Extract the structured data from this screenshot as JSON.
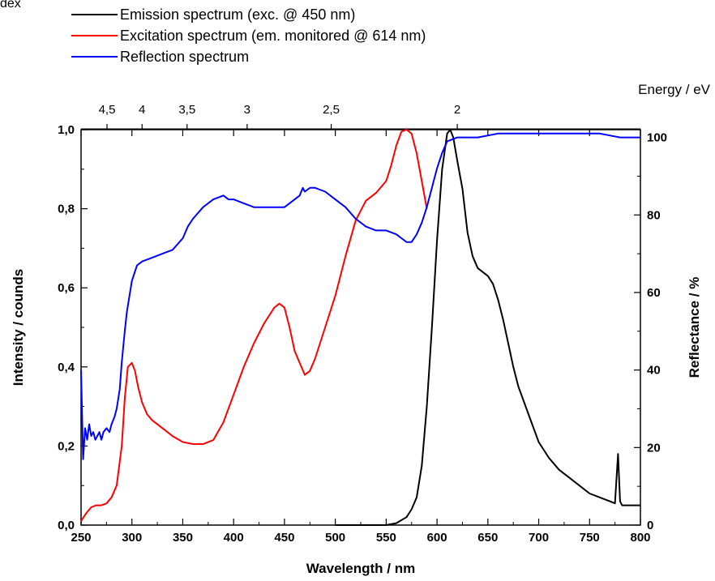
{
  "corner_text": "dex",
  "chart_data": {
    "type": "line",
    "title": "",
    "xlabel": "Wavelength / nm",
    "ylabel": "Intensity / counds",
    "ylabel_right": "Reflectance / %",
    "x2label": "Energy / eV",
    "xlim": [
      250,
      800
    ],
    "ylim": [
      0,
      1.0
    ],
    "y2lim": [
      0,
      102
    ],
    "x_ticks": [
      "250",
      "300",
      "350",
      "400",
      "450",
      "500",
      "550",
      "600",
      "650",
      "700",
      "750",
      "800"
    ],
    "y_ticks": [
      "0,0",
      "0,2",
      "0,4",
      "0,6",
      "0,8",
      "1,0"
    ],
    "y2_ticks": [
      "0",
      "20",
      "40",
      "60",
      "80",
      "100"
    ],
    "x2_ticks": [
      {
        "energy": 4.5,
        "label": "4,5"
      },
      {
        "energy": 4.0,
        "label": "4"
      },
      {
        "energy": 3.5,
        "label": "3,5"
      },
      {
        "energy": 3.0,
        "label": "3"
      },
      {
        "energy": 2.5,
        "label": "2,5"
      },
      {
        "energy": 2.0,
        "label": "2"
      }
    ],
    "legend_position": "top-left",
    "grid": false,
    "series": [
      {
        "name": "Emission spectrum (exc. @ 450 nm)",
        "color": "#000000",
        "axis": "left",
        "x": [
          500,
          520,
          540,
          550,
          560,
          570,
          575,
          580,
          585,
          590,
          595,
          600,
          605,
          610,
          613,
          616,
          620,
          625,
          630,
          635,
          640,
          645,
          650,
          655,
          660,
          665,
          670,
          675,
          680,
          690,
          700,
          710,
          720,
          730,
          740,
          750,
          760,
          770,
          775,
          778,
          780,
          782,
          785,
          790,
          795,
          800
        ],
        "y": [
          0.0,
          0.0,
          0.0,
          0.0,
          0.005,
          0.02,
          0.04,
          0.07,
          0.15,
          0.3,
          0.5,
          0.72,
          0.9,
          0.99,
          1.0,
          0.98,
          0.92,
          0.85,
          0.74,
          0.68,
          0.65,
          0.64,
          0.63,
          0.61,
          0.57,
          0.52,
          0.46,
          0.4,
          0.35,
          0.28,
          0.21,
          0.17,
          0.14,
          0.12,
          0.1,
          0.08,
          0.07,
          0.06,
          0.055,
          0.18,
          0.06,
          0.05,
          0.05,
          0.05,
          0.05,
          0.05
        ]
      },
      {
        "name": "Excitation spectrum (em. monitored @ 614 nm)",
        "color": "#ff0000",
        "axis": "left",
        "x": [
          250,
          255,
          260,
          265,
          270,
          275,
          280,
          285,
          290,
          293,
          296,
          300,
          303,
          306,
          310,
          315,
          320,
          330,
          340,
          350,
          360,
          370,
          380,
          390,
          400,
          410,
          420,
          430,
          440,
          445,
          450,
          455,
          460,
          465,
          470,
          475,
          480,
          490,
          500,
          510,
          520,
          530,
          540,
          550,
          555,
          560,
          565,
          570,
          575,
          580,
          585,
          590
        ],
        "y": [
          0.01,
          0.03,
          0.045,
          0.05,
          0.05,
          0.055,
          0.07,
          0.1,
          0.2,
          0.32,
          0.4,
          0.41,
          0.39,
          0.35,
          0.31,
          0.28,
          0.265,
          0.245,
          0.225,
          0.21,
          0.205,
          0.205,
          0.215,
          0.26,
          0.33,
          0.4,
          0.46,
          0.51,
          0.55,
          0.56,
          0.55,
          0.5,
          0.44,
          0.41,
          0.38,
          0.39,
          0.42,
          0.5,
          0.58,
          0.68,
          0.77,
          0.82,
          0.84,
          0.87,
          0.91,
          0.96,
          0.995,
          1.0,
          0.99,
          0.94,
          0.87,
          0.8
        ]
      },
      {
        "name": "Reflection spectrum",
        "color": "#0000ff",
        "axis": "right",
        "x": [
          250,
          252,
          254,
          256,
          258,
          260,
          262,
          264,
          266,
          268,
          270,
          272,
          275,
          278,
          280,
          283,
          285,
          288,
          290,
          293,
          295,
          300,
          305,
          310,
          320,
          330,
          340,
          350,
          355,
          360,
          370,
          380,
          390,
          395,
          400,
          410,
          420,
          430,
          440,
          450,
          460,
          465,
          468,
          470,
          475,
          480,
          490,
          500,
          510,
          520,
          530,
          540,
          550,
          560,
          565,
          570,
          575,
          580,
          585,
          590,
          595,
          600,
          605,
          610,
          620,
          640,
          660,
          680,
          700,
          720,
          740,
          760,
          780,
          800
        ],
        "y": [
          40,
          17,
          25,
          22,
          26,
          23,
          24,
          22,
          23,
          24,
          22,
          24,
          25,
          24,
          26,
          28,
          30,
          35,
          42,
          50,
          55,
          63,
          67,
          68,
          69,
          70,
          71,
          74,
          77,
          79,
          82,
          84,
          85,
          84,
          84,
          83,
          82,
          82,
          82,
          82,
          84,
          85,
          87,
          86,
          87,
          87,
          86,
          84,
          82,
          79,
          77,
          76,
          76,
          75,
          74,
          73,
          73,
          75,
          78,
          82,
          87,
          92,
          96,
          99,
          100,
          100,
          101,
          101,
          101,
          101,
          101,
          101,
          100,
          100
        ]
      }
    ]
  }
}
